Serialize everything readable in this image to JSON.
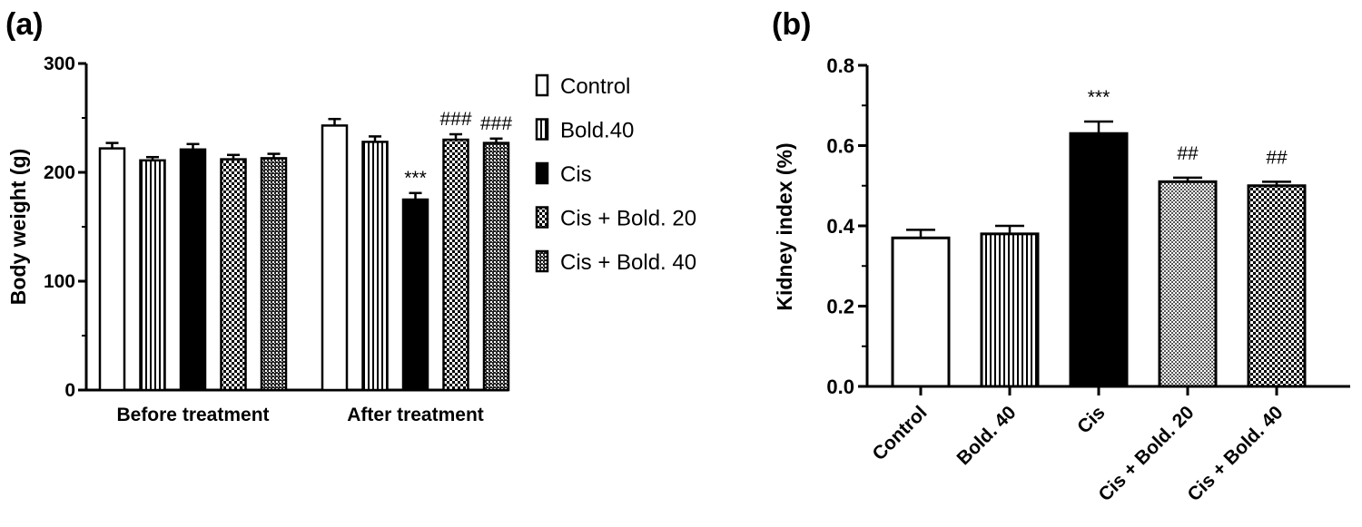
{
  "figure": {
    "panel_a_label": "(a)",
    "panel_b_label": "(b)"
  },
  "colors": {
    "ink": "#000000",
    "background": "#ffffff"
  },
  "chart_data": [
    {
      "id": "a",
      "type": "bar",
      "ylabel": "Body weight (g)",
      "xlabel": "",
      "ylim": [
        0,
        300
      ],
      "yticks": [
        0,
        100,
        200,
        300
      ],
      "categories": [
        "Before treatment",
        "After treatment"
      ],
      "series": [
        {
          "name": "Control",
          "pattern": "white",
          "values": [
            222,
            243
          ],
          "errors": [
            5,
            6
          ],
          "annotations": [
            "",
            ""
          ]
        },
        {
          "name": "Bold.40",
          "pattern": "vstripes",
          "values": [
            211,
            228
          ],
          "errors": [
            3,
            5
          ],
          "annotations": [
            "",
            ""
          ]
        },
        {
          "name": "Cis",
          "pattern": "black",
          "values": [
            221,
            175
          ],
          "errors": [
            5,
            6
          ],
          "annotations": [
            "",
            "***"
          ]
        },
        {
          "name": "Cis + Bold. 20",
          "pattern": "checker",
          "values": [
            212,
            230
          ],
          "errors": [
            4,
            5
          ],
          "annotations": [
            "",
            "###"
          ]
        },
        {
          "name": "Cis + Bold. 40",
          "pattern": "checker-dense",
          "values": [
            213,
            227
          ],
          "errors": [
            4,
            4
          ],
          "annotations": [
            "",
            "###"
          ]
        }
      ],
      "legend": {
        "placement": "right",
        "entries": [
          "Control",
          "Bold.40",
          "Cis",
          "Cis + Bold. 20",
          "Cis + Bold. 40"
        ]
      }
    },
    {
      "id": "b",
      "type": "bar",
      "ylabel": "Kidney index (%)",
      "xlabel": "",
      "ylim": [
        0,
        0.8
      ],
      "yticks": [
        "0.0",
        "0.2",
        "0.4",
        "0.6",
        "0.8"
      ],
      "categories": [
        "Control",
        "Bold. 40",
        "Cis",
        "Cis + Bold. 20",
        "Cis + Bold. 40"
      ],
      "patterns": [
        "white",
        "vstripes",
        "black",
        "checker-fine",
        "checker"
      ],
      "values": [
        0.37,
        0.38,
        0.63,
        0.51,
        0.5
      ],
      "errors": [
        0.02,
        0.02,
        0.03,
        0.01,
        0.01
      ],
      "annotations": [
        "",
        "",
        "***",
        "##",
        "##"
      ]
    }
  ]
}
